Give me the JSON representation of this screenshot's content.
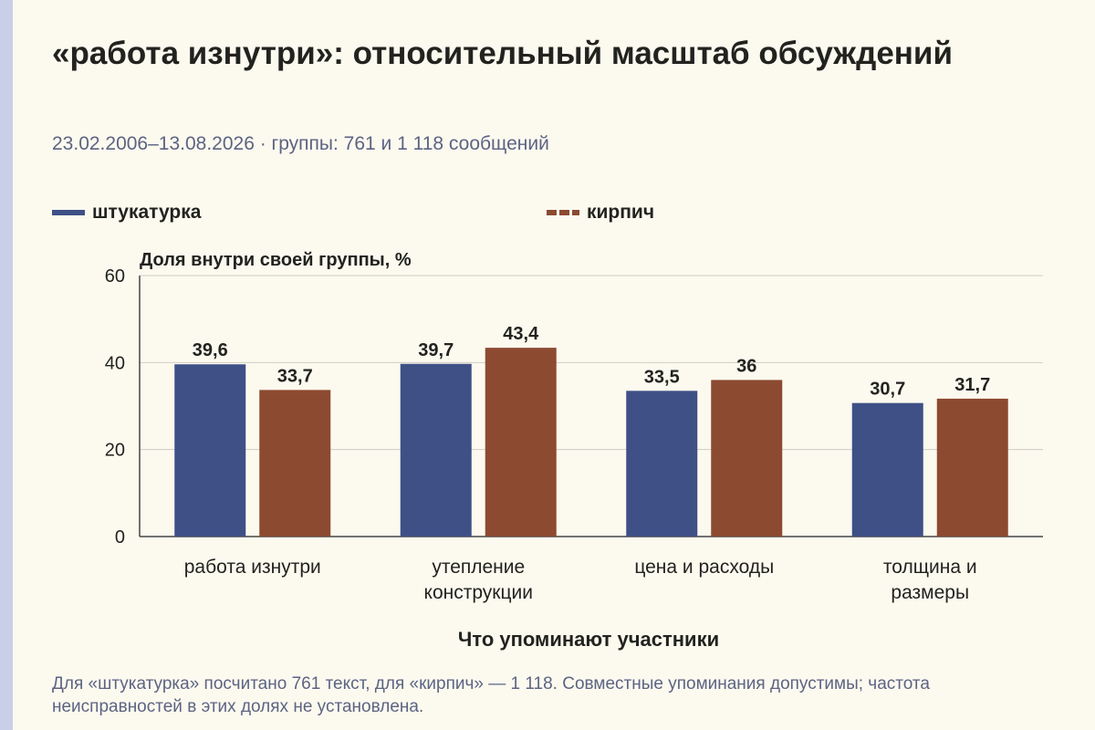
{
  "header": {
    "title": "«работа изнутри»: относительный масштаб обсуждений",
    "subtitle": "23.02.2006–13.08.2026 · группы: 761 и 1 118 сообщений"
  },
  "legend": [
    {
      "label": "штукатурка",
      "color": "#3e5086",
      "style": "solid"
    },
    {
      "label": "кирпич",
      "color": "#8c4a31",
      "style": "dashed"
    }
  ],
  "chart_data": {
    "type": "bar",
    "categories": [
      [
        "работа изнутри"
      ],
      [
        "утепление",
        "конструкции"
      ],
      [
        "цена и расходы"
      ],
      [
        "толщина и",
        "размеры"
      ]
    ],
    "series": [
      {
        "name": "штукатурка",
        "color": "#3e5086",
        "values": [
          39.6,
          39.7,
          33.5,
          30.7
        ],
        "labels": [
          "39,6",
          "39,7",
          "33,5",
          "30,7"
        ]
      },
      {
        "name": "кирпич",
        "color": "#8c4a31",
        "values": [
          33.7,
          43.4,
          36,
          31.7
        ],
        "labels": [
          "33,7",
          "43,4",
          "36",
          "31,7"
        ]
      }
    ],
    "ylabel": "Доля внутри своей группы, %",
    "xlabel": "Что упоминают участники",
    "ylim": [
      0,
      60
    ],
    "yticks": [
      0,
      20,
      40,
      60
    ],
    "grid": true,
    "legend_position": "top"
  },
  "footnote": "Для «штукатурка» посчитано 761 текст, для «кирпич» — 1 118. Совместные упоминания допустимы; частота неисправностей в этих долях не установлена."
}
